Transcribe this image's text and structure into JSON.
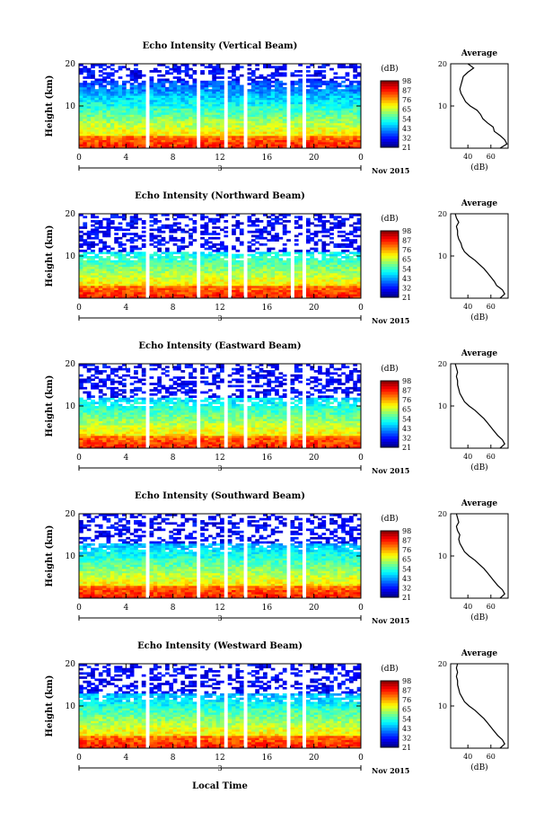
{
  "figure": {
    "xlabel_bottom": "Local Time",
    "date_label": "Nov 2015",
    "day_label": "3",
    "height_axis_label": "Height (km)",
    "colorbar_unit": "(dB)",
    "avg_title": "Average",
    "avg_xlabel": "(dB)"
  },
  "chart_data": [
    {
      "type": "heatmap",
      "title": "Echo Intensity (Vertical Beam)",
      "xlabel": "",
      "ylabel": "Height (km)",
      "x_ticks": [
        "0",
        "4",
        "8",
        "12",
        "16",
        "20",
        "0"
      ],
      "x_range": [
        0,
        24
      ],
      "y_ticks": [
        "10",
        "20"
      ],
      "y_range": [
        0,
        20
      ],
      "colorbar_ticks": [
        "98",
        "87",
        "76",
        "65",
        "54",
        "43",
        "32",
        "21"
      ],
      "colorbar_range": [
        21,
        98
      ],
      "gaps_hours": [
        5.9,
        10.3,
        12.6,
        14.3,
        17.9,
        19.3
      ],
      "sparse_above_km": 16,
      "average": {
        "ticks": [
          "40",
          "60"
        ],
        "range": [
          25,
          75
        ],
        "height": [
          0,
          1,
          2,
          3,
          4,
          5,
          6,
          7,
          8,
          9,
          10,
          11,
          12,
          13,
          14,
          15,
          16,
          17,
          18,
          19,
          20
        ],
        "db": [
          68,
          74,
          72,
          68,
          63,
          62,
          57,
          53,
          51,
          48,
          42,
          38,
          36,
          34,
          33,
          34,
          35,
          36,
          40,
          45,
          40
        ]
      }
    },
    {
      "type": "heatmap",
      "title": "Echo Intensity (Northward Beam)",
      "xlabel": "",
      "ylabel": "Height (km)",
      "x_ticks": [
        "0",
        "4",
        "8",
        "12",
        "16",
        "20",
        "0"
      ],
      "x_range": [
        0,
        24
      ],
      "y_ticks": [
        "10",
        "20"
      ],
      "y_range": [
        0,
        20
      ],
      "colorbar_ticks": [
        "98",
        "87",
        "76",
        "65",
        "54",
        "43",
        "32",
        "21"
      ],
      "colorbar_range": [
        21,
        98
      ],
      "gaps_hours": [
        5.9,
        10.3,
        12.9,
        14.3,
        18.2,
        19.3
      ],
      "sparse_above_km": 11,
      "average": {
        "ticks": [
          "40",
          "60"
        ],
        "range": [
          25,
          75
        ],
        "height": [
          0,
          1,
          2,
          3,
          4,
          5,
          6,
          7,
          8,
          9,
          10,
          11,
          12,
          13,
          14,
          15,
          16,
          17,
          18,
          19,
          20
        ],
        "db": [
          68,
          72,
          70,
          65,
          63,
          60,
          57,
          54,
          50,
          46,
          41,
          37,
          35,
          34,
          32,
          31,
          31,
          30,
          32,
          30,
          29
        ]
      }
    },
    {
      "type": "heatmap",
      "title": "Echo Intensity (Eastward Beam)",
      "xlabel": "",
      "ylabel": "Height (km)",
      "x_ticks": [
        "0",
        "4",
        "8",
        "12",
        "16",
        "20",
        "0"
      ],
      "x_range": [
        0,
        24
      ],
      "y_ticks": [
        "10",
        "20"
      ],
      "y_range": [
        0,
        20
      ],
      "colorbar_ticks": [
        "98",
        "87",
        "76",
        "65",
        "54",
        "43",
        "32",
        "21"
      ],
      "colorbar_range": [
        21,
        98
      ],
      "gaps_hours": [
        5.9,
        10.3,
        12.6,
        14.3,
        17.9,
        19.3
      ],
      "sparse_above_km": 12,
      "average": {
        "ticks": [
          "40",
          "60"
        ],
        "range": [
          25,
          75
        ],
        "height": [
          0,
          1,
          2,
          3,
          4,
          5,
          6,
          7,
          8,
          9,
          10,
          11,
          12,
          13,
          14,
          15,
          16,
          17,
          18,
          19,
          20
        ],
        "db": [
          68,
          72,
          70,
          66,
          63,
          60,
          57,
          54,
          50,
          46,
          41,
          37,
          35,
          33,
          32,
          31,
          31,
          30,
          31,
          30,
          29
        ]
      }
    },
    {
      "type": "heatmap",
      "title": "Echo Intensity (Southward Beam)",
      "xlabel": "",
      "ylabel": "Height (km)",
      "x_ticks": [
        "0",
        "4",
        "8",
        "12",
        "16",
        "20",
        "0"
      ],
      "x_range": [
        0,
        24
      ],
      "y_ticks": [
        "10",
        "20"
      ],
      "y_range": [
        0,
        20
      ],
      "colorbar_ticks": [
        "98",
        "87",
        "76",
        "65",
        "54",
        "43",
        "32",
        "21"
      ],
      "colorbar_range": [
        21,
        98
      ],
      "gaps_hours": [
        5.9,
        10.3,
        12.6,
        14.3,
        17.9,
        19.3
      ],
      "sparse_above_km": 13,
      "average": {
        "ticks": [
          "40",
          "60"
        ],
        "range": [
          25,
          75
        ],
        "height": [
          0,
          1,
          2,
          3,
          4,
          5,
          6,
          7,
          8,
          9,
          10,
          11,
          12,
          13,
          14,
          15,
          16,
          17,
          18,
          19,
          20
        ],
        "db": [
          68,
          72,
          70,
          66,
          63,
          60,
          57,
          54,
          50,
          46,
          41,
          37,
          35,
          33,
          32,
          33,
          31,
          30,
          32,
          31,
          30
        ]
      }
    },
    {
      "type": "heatmap",
      "title": "Echo Intensity (Westward Beam)",
      "xlabel": "Local Time",
      "ylabel": "Height (km)",
      "x_ticks": [
        "0",
        "4",
        "8",
        "12",
        "16",
        "20",
        "0"
      ],
      "x_range": [
        0,
        24
      ],
      "y_ticks": [
        "10",
        "20"
      ],
      "y_range": [
        0,
        20
      ],
      "colorbar_ticks": [
        "98",
        "87",
        "76",
        "65",
        "54",
        "43",
        "32",
        "21"
      ],
      "colorbar_range": [
        21,
        98
      ],
      "gaps_hours": [
        5.9,
        10.3,
        12.6,
        14.3,
        17.9,
        19.3
      ],
      "sparse_above_km": 13,
      "average": {
        "ticks": [
          "40",
          "60"
        ],
        "range": [
          25,
          75
        ],
        "height": [
          0,
          1,
          2,
          3,
          4,
          5,
          6,
          7,
          8,
          9,
          10,
          11,
          12,
          13,
          14,
          15,
          16,
          17,
          18,
          19,
          20
        ],
        "db": [
          68,
          72,
          70,
          66,
          63,
          60,
          57,
          54,
          50,
          46,
          41,
          37,
          35,
          33,
          32,
          31,
          31,
          30,
          31,
          30,
          31
        ]
      }
    }
  ]
}
